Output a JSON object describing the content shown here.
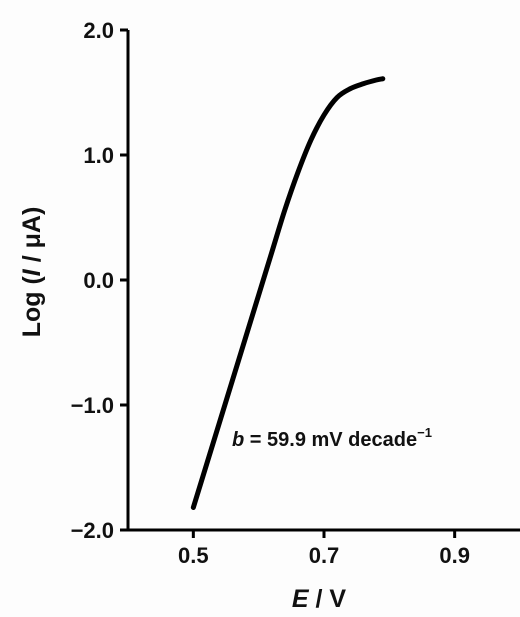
{
  "chart_data": {
    "type": "line",
    "title": "",
    "xlabel": {
      "var": "E",
      "sep": " / ",
      "unit": "V"
    },
    "ylabel": {
      "prefix": "Log (",
      "var": "I",
      "sep": " / ",
      "unit": "μA",
      "suffix": ")"
    },
    "xlim": [
      0.4,
      1.0
    ],
    "ylim": [
      -2.0,
      2.0
    ],
    "xticks": [
      {
        "value": 0.5,
        "label": "0.5"
      },
      {
        "value": 0.7,
        "label": "0.7"
      },
      {
        "value": 0.9,
        "label": "0.9"
      }
    ],
    "yticks": [
      {
        "value": 2.0,
        "label": "2.0"
      },
      {
        "value": 1.0,
        "label": "1.0"
      },
      {
        "value": 0.0,
        "label": "0.0"
      },
      {
        "value": -1.0,
        "label": "−1.0"
      },
      {
        "value": -2.0,
        "label": "−2.0"
      }
    ],
    "grid": false,
    "series": [
      {
        "color": "#000000",
        "x": [
          0.5,
          0.52,
          0.54,
          0.56,
          0.58,
          0.6,
          0.62,
          0.64,
          0.66,
          0.68,
          0.7,
          0.72,
          0.74,
          0.76,
          0.78,
          0.79
        ],
        "y": [
          -1.82,
          -1.48,
          -1.14,
          -0.8,
          -0.46,
          -0.12,
          0.22,
          0.56,
          0.86,
          1.12,
          1.32,
          1.46,
          1.53,
          1.57,
          1.6,
          1.61
        ]
      }
    ],
    "annotations": [
      {
        "var": "b",
        "text": " = 59.9 mV decade",
        "sup": "−1"
      }
    ]
  }
}
